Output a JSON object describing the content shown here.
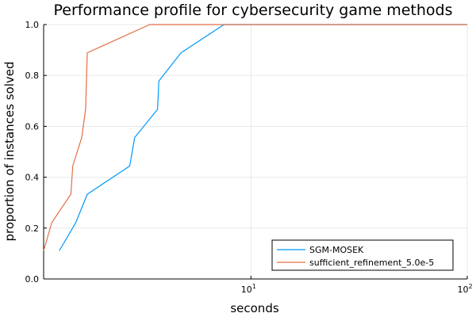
{
  "chart_data": {
    "type": "line",
    "title": "Performance profile for cybersecurity game methods",
    "xlabel": "seconds",
    "ylabel": "proportion of instances solved",
    "xscale": "log",
    "xlim": [
      1.1,
      100
    ],
    "ylim": [
      0,
      1
    ],
    "xticks": [
      {
        "value": 10,
        "base": "10",
        "exp": "1"
      },
      {
        "value": 100,
        "base": "10",
        "exp": "2"
      }
    ],
    "yticks": [
      {
        "value": 0.0,
        "label": "0.0"
      },
      {
        "value": 0.2,
        "label": "0.2"
      },
      {
        "value": 0.4,
        "label": "0.4"
      },
      {
        "value": 0.6,
        "label": "0.6"
      },
      {
        "value": 0.8,
        "label": "0.8"
      },
      {
        "value": 1.0,
        "label": "1.0"
      }
    ],
    "grid": true,
    "legend_position": "bottom-right",
    "series": [
      {
        "name": "SGM-MOSEK",
        "color": "#009af9",
        "x": [
          1.3,
          1.55,
          1.75,
          2.75,
          2.9,
          3.7,
          3.75,
          4.75,
          7.5,
          100
        ],
        "y": [
          0.111,
          0.222,
          0.333,
          0.444,
          0.556,
          0.667,
          0.778,
          0.889,
          1.0,
          1.0
        ]
      },
      {
        "name": "sufficient_refinement_5.0e-5",
        "color": "#e26f46",
        "x": [
          1.1,
          1.2,
          1.47,
          1.5,
          1.65,
          1.72,
          1.75,
          3.4,
          100
        ],
        "y": [
          0.111,
          0.222,
          0.333,
          0.444,
          0.556,
          0.667,
          0.889,
          1.0,
          1.0
        ]
      }
    ]
  }
}
